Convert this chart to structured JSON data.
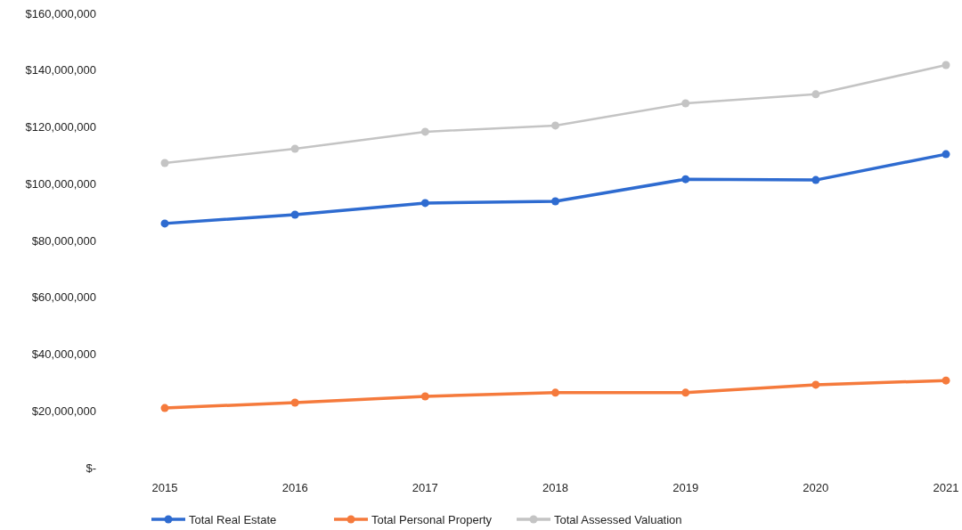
{
  "chart_data": {
    "type": "line",
    "categories": [
      "2015",
      "2016",
      "2017",
      "2018",
      "2019",
      "2020",
      "2021"
    ],
    "series": [
      {
        "name": "Total Real Estate",
        "color": "#2e6bd0",
        "marker": "circle",
        "values": [
          86000000,
          89100000,
          93200000,
          93800000,
          101600000,
          101300000,
          110400000
        ]
      },
      {
        "name": "Total Personal Property",
        "color": "#f57a3c",
        "marker": "circle",
        "values": [
          21000000,
          22900000,
          25100000,
          26400000,
          26400000,
          29200000,
          30700000
        ]
      },
      {
        "name": "Total Assessed Valuation",
        "color": "#c4c4c4",
        "marker": "circle",
        "values": [
          107300000,
          112300000,
          118300000,
          120500000,
          128300000,
          131500000,
          141800000
        ]
      }
    ],
    "ylim": [
      0,
      160000000
    ],
    "yticks": [
      {
        "value": 0,
        "label": "$-"
      },
      {
        "value": 20000000,
        "label": "$20,000,000"
      },
      {
        "value": 40000000,
        "label": "$40,000,000"
      },
      {
        "value": 60000000,
        "label": "$60,000,000"
      },
      {
        "value": 80000000,
        "label": "$80,000,000"
      },
      {
        "value": 100000000,
        "label": "$100,000,000"
      },
      {
        "value": 120000000,
        "label": "$120,000,000"
      },
      {
        "value": 140000000,
        "label": "$140,000,000"
      },
      {
        "value": 160000000,
        "label": "$160,000,000"
      }
    ],
    "grid": false,
    "legend": "bottom",
    "line_style": "solid"
  }
}
